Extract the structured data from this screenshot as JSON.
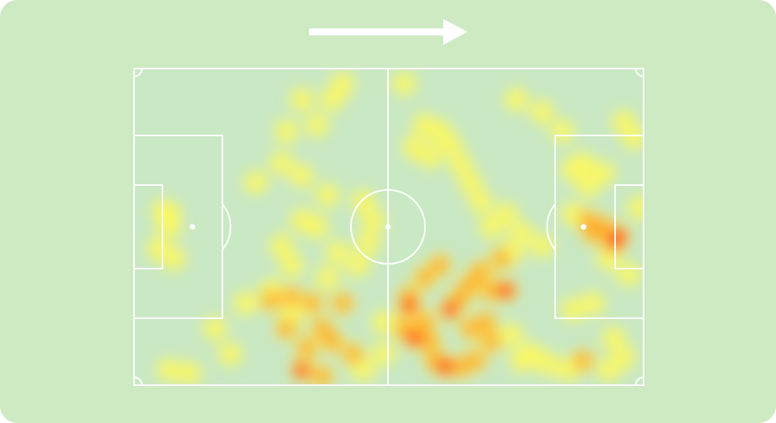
{
  "view": {
    "background_color": "#cdeac3",
    "pitch_color": "#c9e8c4",
    "line_color": "#ffffff",
    "attack_direction": "right",
    "direction_icon": "right-arrow-icon"
  },
  "heatmap": {
    "palette": [
      "#fff95a",
      "#ffe02a",
      "#ff9a1e",
      "#ff2a1a"
    ],
    "points": [
      [
        0.41,
        0.05,
        1
      ],
      [
        0.39,
        0.1,
        1
      ],
      [
        0.33,
        0.1,
        1
      ],
      [
        0.36,
        0.18,
        1
      ],
      [
        0.3,
        0.2,
        1
      ],
      [
        0.29,
        0.3,
        1
      ],
      [
        0.24,
        0.36,
        1
      ],
      [
        0.33,
        0.34,
        1
      ],
      [
        0.38,
        0.4,
        1
      ],
      [
        0.33,
        0.48,
        1
      ],
      [
        0.29,
        0.56,
        1
      ],
      [
        0.36,
        0.5,
        1
      ],
      [
        0.31,
        0.62,
        1
      ],
      [
        0.27,
        0.7,
        1
      ],
      [
        0.22,
        0.74,
        1
      ],
      [
        0.16,
        0.82,
        1
      ],
      [
        0.19,
        0.9,
        1
      ],
      [
        0.07,
        0.95,
        1
      ],
      [
        0.11,
        0.96,
        1
      ],
      [
        0.06,
        0.45,
        1
      ],
      [
        0.07,
        0.5,
        1
      ],
      [
        0.05,
        0.57,
        1
      ],
      [
        0.08,
        0.6,
        1
      ],
      [
        0.07,
        0.46,
        1
      ],
      [
        0.27,
        0.73,
        2
      ],
      [
        0.31,
        0.72,
        2
      ],
      [
        0.35,
        0.74,
        2
      ],
      [
        0.41,
        0.74,
        2
      ],
      [
        0.37,
        0.82,
        2
      ],
      [
        0.39,
        0.86,
        2
      ],
      [
        0.43,
        0.9,
        2
      ],
      [
        0.34,
        0.88,
        2
      ],
      [
        0.3,
        0.82,
        2
      ],
      [
        0.33,
        0.95,
        3
      ],
      [
        0.37,
        0.97,
        2
      ],
      [
        0.45,
        0.95,
        1
      ],
      [
        0.49,
        0.8,
        1
      ],
      [
        0.49,
        0.9,
        1
      ],
      [
        0.54,
        0.75,
        3
      ],
      [
        0.54,
        0.72,
        2
      ],
      [
        0.57,
        0.66,
        2
      ],
      [
        0.6,
        0.62,
        2
      ],
      [
        0.57,
        0.8,
        2
      ],
      [
        0.55,
        0.85,
        3
      ],
      [
        0.53,
        0.82,
        2
      ],
      [
        0.58,
        0.86,
        2
      ],
      [
        0.59,
        0.92,
        2
      ],
      [
        0.61,
        0.94,
        3
      ],
      [
        0.64,
        0.94,
        2
      ],
      [
        0.67,
        0.92,
        2
      ],
      [
        0.62,
        0.76,
        3
      ],
      [
        0.64,
        0.72,
        2
      ],
      [
        0.66,
        0.68,
        2
      ],
      [
        0.68,
        0.64,
        2
      ],
      [
        0.7,
        0.7,
        2
      ],
      [
        0.73,
        0.7,
        3
      ],
      [
        0.72,
        0.6,
        2
      ],
      [
        0.74,
        0.58,
        1
      ],
      [
        0.69,
        0.8,
        2
      ],
      [
        0.66,
        0.82,
        2
      ],
      [
        0.7,
        0.86,
        2
      ],
      [
        0.74,
        0.84,
        1
      ],
      [
        0.76,
        0.92,
        1
      ],
      [
        0.78,
        0.9,
        1
      ],
      [
        0.81,
        0.93,
        1
      ],
      [
        0.85,
        0.95,
        1
      ],
      [
        0.88,
        0.92,
        2
      ],
      [
        0.93,
        0.95,
        1
      ],
      [
        0.96,
        0.91,
        1
      ],
      [
        0.53,
        0.05,
        1
      ],
      [
        0.57,
        0.18,
        1
      ],
      [
        0.55,
        0.25,
        1
      ],
      [
        0.6,
        0.2,
        1
      ],
      [
        0.58,
        0.28,
        1
      ],
      [
        0.62,
        0.24,
        1
      ],
      [
        0.64,
        0.3,
        1
      ],
      [
        0.66,
        0.36,
        1
      ],
      [
        0.68,
        0.42,
        1
      ],
      [
        0.7,
        0.5,
        1
      ],
      [
        0.73,
        0.46,
        1
      ],
      [
        0.75,
        0.1,
        1
      ],
      [
        0.8,
        0.14,
        1
      ],
      [
        0.84,
        0.2,
        1
      ],
      [
        0.86,
        0.32,
        1
      ],
      [
        0.89,
        0.37,
        1
      ],
      [
        0.88,
        0.3,
        1
      ],
      [
        0.92,
        0.33,
        1
      ],
      [
        0.98,
        0.22,
        1
      ],
      [
        0.96,
        0.17,
        1
      ],
      [
        0.99,
        0.44,
        1
      ],
      [
        0.86,
        0.46,
        1
      ],
      [
        0.89,
        0.48,
        2
      ],
      [
        0.9,
        0.52,
        2
      ],
      [
        0.92,
        0.5,
        2
      ],
      [
        0.94,
        0.55,
        3
      ],
      [
        0.95,
        0.53,
        3
      ],
      [
        0.93,
        0.6,
        1
      ],
      [
        0.97,
        0.65,
        1
      ],
      [
        0.9,
        0.74,
        1
      ],
      [
        0.94,
        0.85,
        1
      ],
      [
        0.86,
        0.76,
        1
      ],
      [
        0.76,
        0.52,
        1
      ],
      [
        0.8,
        0.56,
        1
      ],
      [
        0.45,
        0.42,
        1
      ],
      [
        0.47,
        0.48,
        1
      ],
      [
        0.46,
        0.55,
        1
      ],
      [
        0.44,
        0.62,
        1
      ],
      [
        0.4,
        0.58,
        1
      ],
      [
        0.38,
        0.66,
        1
      ],
      [
        0.31,
        0.78,
        1
      ]
    ]
  }
}
